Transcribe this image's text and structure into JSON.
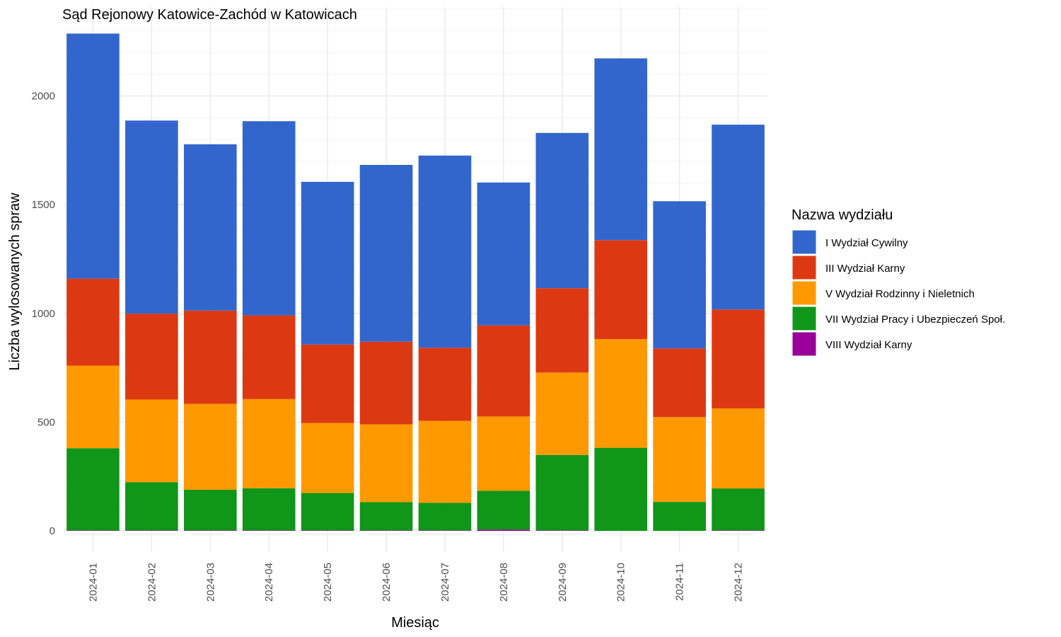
{
  "chart_data": {
    "type": "bar",
    "stacked": true,
    "title": "Sąd Rejonowy Katowice-Zachód w Katowicach",
    "xlabel": "Miesiąc",
    "ylabel": "Liczba wylosowanych spraw",
    "ylim": [
      0,
      2400
    ],
    "y_ticks": [
      0,
      500,
      1000,
      1500,
      2000
    ],
    "y_tick_labels": [
      "0",
      "500",
      "1000",
      "1500",
      "2000"
    ],
    "grid": true,
    "legend_position": "right",
    "legend_title": "Nazwa wydziału",
    "categories": [
      "2024-01",
      "2024-02",
      "2024-03",
      "2024-04",
      "2024-05",
      "2024-06",
      "2024-07",
      "2024-08",
      "2024-09",
      "2024-10",
      "2024-11",
      "2024-12"
    ],
    "series": [
      {
        "name": "I Wydział Cywilny",
        "color": "#3366cc",
        "values": [
          1127,
          888,
          765,
          893,
          748,
          813,
          884,
          657,
          714,
          836,
          677,
          850
        ]
      },
      {
        "name": "III Wydział Karny",
        "color": "#dc3912",
        "values": [
          400,
          395,
          429,
          385,
          361,
          380,
          336,
          419,
          388,
          455,
          316,
          455
        ]
      },
      {
        "name": "V Wydział Rodzinny i Nieletnich",
        "color": "#ff9900",
        "values": [
          380,
          380,
          395,
          410,
          322,
          358,
          377,
          342,
          379,
          500,
          390,
          368
        ]
      },
      {
        "name": "VII Wydział Pracy i Ubezpieczeń Społ.",
        "color": "#109618",
        "values": [
          378,
          222,
          187,
          194,
          172,
          130,
          127,
          178,
          347,
          382,
          133,
          193
        ]
      },
      {
        "name": "VIII Wydział Karny",
        "color": "#990099",
        "values": [
          2,
          2,
          2,
          2,
          2,
          2,
          2,
          6,
          2,
          0,
          0,
          2
        ]
      }
    ]
  }
}
